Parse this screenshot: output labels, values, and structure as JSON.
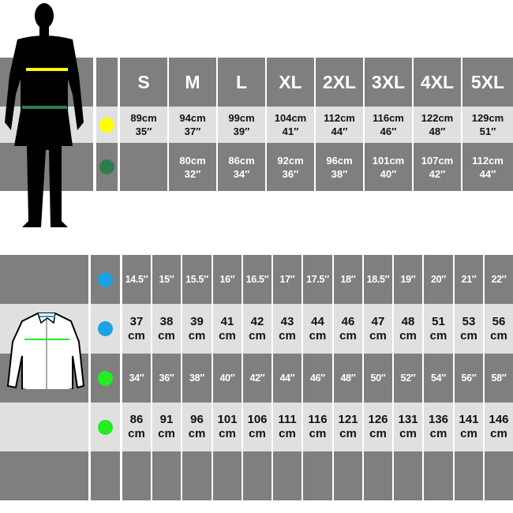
{
  "body_chart": {
    "sizes": [
      "S",
      "M",
      "L",
      "XL",
      "2XL",
      "3XL",
      "4XL",
      "5XL"
    ],
    "rows": [
      {
        "marker": "chest",
        "color": "#ffff00",
        "values": [
          [
            "89cm",
            "35″"
          ],
          [
            "94cm",
            "37″"
          ],
          [
            "99cm",
            "39″"
          ],
          [
            "104cm",
            "41″"
          ],
          [
            "112cm",
            "44″"
          ],
          [
            "116cm",
            "46″"
          ],
          [
            "122cm",
            "48″"
          ],
          [
            "129cm",
            "51″"
          ]
        ]
      },
      {
        "marker": "waist",
        "color": "#2e7d4f",
        "values": [
          [
            "",
            ""
          ],
          [
            "80cm",
            "32″"
          ],
          [
            "86cm",
            "34″"
          ],
          [
            "92cm",
            "36″"
          ],
          [
            "96cm",
            "38″"
          ],
          [
            "101cm",
            "40″"
          ],
          [
            "107cm",
            "42″"
          ],
          [
            "112cm",
            "44″"
          ]
        ]
      }
    ]
  },
  "shirt_chart": {
    "collar_inches": [
      "14.5″",
      "15″",
      "15.5″",
      "16″",
      "16.5″",
      "17″",
      "17.5″",
      "18″",
      "18.5″",
      "19″",
      "20″",
      "21″",
      "22″"
    ],
    "collar_cm": [
      "37",
      "38",
      "39",
      "41",
      "42",
      "43",
      "44",
      "46",
      "47",
      "48",
      "51",
      "53",
      "56"
    ],
    "chest_inches": [
      "34″",
      "36″",
      "38″",
      "40″",
      "42″",
      "44″",
      "46″",
      "48″",
      "50″",
      "52″",
      "54″",
      "56″",
      "58″"
    ],
    "chest_cm": [
      "86",
      "91",
      "96",
      "101",
      "106",
      "111",
      "116",
      "121",
      "126",
      "131",
      "136",
      "141",
      "146"
    ],
    "unit": "cm",
    "collar_color": "#1aa3e0",
    "chest_color": "#22ee22"
  },
  "colors": {
    "dark": "#7f7f7f",
    "light": "#e0e0e0"
  }
}
